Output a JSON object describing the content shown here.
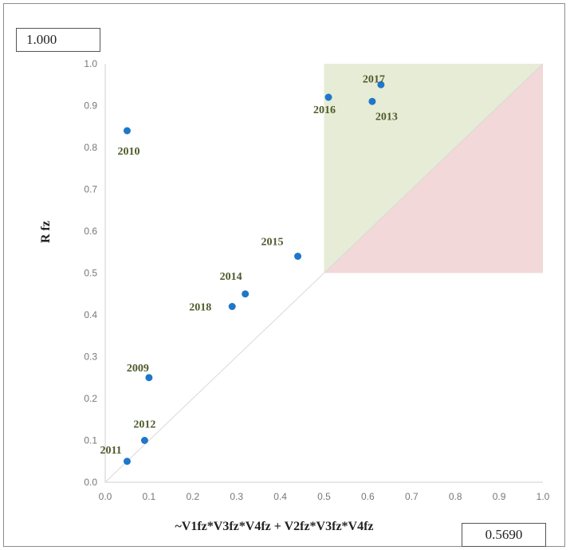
{
  "consistency_value": "1.000",
  "coverage_value": "0.5690",
  "chart_data": {
    "type": "scatter",
    "xlabel": "~V1fz*V3fz*V4fz + V2fz*V3fz*V4fz",
    "ylabel": "R fz",
    "xlim": [
      0,
      1
    ],
    "ylim": [
      0,
      1
    ],
    "x_ticks": [
      "0.0",
      "0.1",
      "0.2",
      "0.3",
      "0.4",
      "0.5",
      "0.6",
      "0.7",
      "0.8",
      "0.9",
      "1.0"
    ],
    "y_ticks": [
      "0.0",
      "0.1",
      "0.2",
      "0.3",
      "0.4",
      "0.5",
      "0.6",
      "0.7",
      "0.8",
      "0.9",
      "1.0"
    ],
    "grid": false,
    "points": [
      {
        "label": "2009",
        "x": 0.1,
        "y": 0.25
      },
      {
        "label": "2010",
        "x": 0.05,
        "y": 0.84
      },
      {
        "label": "2011",
        "x": 0.05,
        "y": 0.05
      },
      {
        "label": "2012",
        "x": 0.09,
        "y": 0.1
      },
      {
        "label": "2013",
        "x": 0.61,
        "y": 0.91
      },
      {
        "label": "2014",
        "x": 0.32,
        "y": 0.45
      },
      {
        "label": "2015",
        "x": 0.44,
        "y": 0.54
      },
      {
        "label": "2016",
        "x": 0.51,
        "y": 0.92
      },
      {
        "label": "2017",
        "x": 0.63,
        "y": 0.95
      },
      {
        "label": "2018",
        "x": 0.29,
        "y": 0.42
      }
    ],
    "regions": [
      {
        "shape": "upper-triangle",
        "x": [
          0.5,
          1.0
        ],
        "y": [
          0.5,
          1.0
        ],
        "color": "#e6ecd6"
      },
      {
        "shape": "lower-triangle",
        "x": [
          0.5,
          1.0
        ],
        "y": [
          0.5,
          1.0
        ],
        "color": "#f2d8d8"
      }
    ],
    "colors": {
      "point": "#1f77c9",
      "diagonal": "#d9d9d9",
      "axis": "#cfcfcf",
      "label": "#4e5b2c"
    }
  }
}
